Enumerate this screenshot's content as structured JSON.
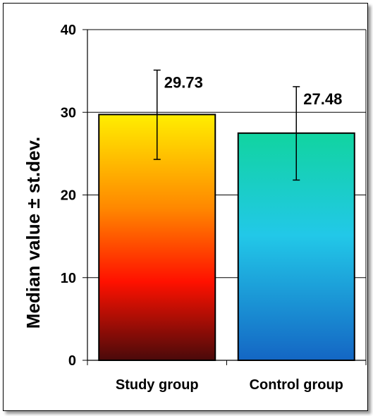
{
  "chart_data": {
    "type": "bar",
    "title": "",
    "xlabel": "",
    "ylabel": "Median value ± st.dev.",
    "ylim": [
      0,
      40
    ],
    "yticks": [
      0,
      10,
      20,
      30,
      40
    ],
    "grid": true,
    "categories": [
      "Study group",
      "Control group"
    ],
    "values": [
      29.73,
      27.48
    ],
    "error_upper": [
      35.1,
      33.1
    ],
    "error_lower": [
      24.3,
      21.8
    ],
    "data_labels": [
      "29.73",
      "27.48"
    ],
    "colors": {
      "study_top": "#ffee00",
      "study_mid": "#ff8800",
      "study_red": "#ff1100",
      "study_bottom": "#4a0a0a",
      "control_top": "#11d4a0",
      "control_mid": "#22c8e8",
      "control_bottom": "#1466c4",
      "gridline": "#000000",
      "frame_border": "#000000"
    }
  }
}
